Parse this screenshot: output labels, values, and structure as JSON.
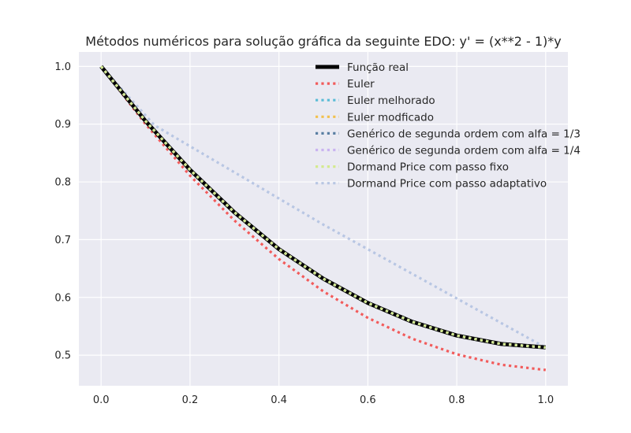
{
  "chart_data": {
    "type": "line",
    "title": "Métodos numéricos para solução gráfica da seguinte EDO: y' = (x**2 - 1)*y",
    "xlabel": "",
    "ylabel": "",
    "xlim": [
      -0.05,
      1.05
    ],
    "ylim": [
      0.447,
      1.025
    ],
    "xticks": [
      0.0,
      0.2,
      0.4,
      0.6,
      0.8,
      1.0
    ],
    "xtick_labels": [
      "0.0",
      "0.2",
      "0.4",
      "0.6",
      "0.8",
      "1.0"
    ],
    "yticks": [
      0.5,
      0.6,
      0.7,
      0.8,
      0.9,
      1.0
    ],
    "ytick_labels": [
      "0.5",
      "0.6",
      "0.7",
      "0.8",
      "0.9",
      "1.0"
    ],
    "grid": true,
    "legend_position": "top-right",
    "series": [
      {
        "name": "Função real",
        "color": "#000000",
        "style": "solid",
        "x": [
          0,
          0.1,
          0.2,
          0.3,
          0.4,
          0.5,
          0.6,
          0.7,
          0.8,
          0.9,
          1.0
        ],
        "y": [
          1.0,
          0.9053,
          0.821,
          0.7472,
          0.6836,
          0.6323,
          0.5904,
          0.5577,
          0.534,
          0.5194,
          0.5134
        ]
      },
      {
        "name": "Euler",
        "color": "#f25b5b",
        "style": "dotted",
        "x": [
          0,
          0.1,
          0.2,
          0.3,
          0.4,
          0.5,
          0.6,
          0.7,
          0.8,
          0.9,
          1.0
        ],
        "y": [
          1.0,
          0.9,
          0.8109,
          0.7331,
          0.6664,
          0.6104,
          0.5646,
          0.5285,
          0.5015,
          0.4834,
          0.4743
        ]
      },
      {
        "name": "Euler melhorado",
        "color": "#5bbcd6",
        "style": "dotted",
        "x": [
          0,
          0.1,
          0.2,
          0.3,
          0.4,
          0.5,
          0.6,
          0.7,
          0.8,
          0.9,
          1.0
        ],
        "y": [
          1.0,
          0.9053,
          0.821,
          0.7472,
          0.6836,
          0.6323,
          0.5904,
          0.5577,
          0.534,
          0.5194,
          0.5134
        ]
      },
      {
        "name": "Euler modficado",
        "color": "#f2c14e",
        "style": "dotted",
        "x": [
          0,
          0.1,
          0.2,
          0.3,
          0.4,
          0.5,
          0.6,
          0.7,
          0.8,
          0.9,
          1.0
        ],
        "y": [
          1.0,
          0.9053,
          0.821,
          0.7472,
          0.6836,
          0.6323,
          0.5904,
          0.5577,
          0.534,
          0.5194,
          0.5134
        ]
      },
      {
        "name": "Genérico de segunda ordem com alfa = 1/3",
        "color": "#5a7fa3",
        "style": "dotted",
        "x": [
          0,
          0.1,
          0.2,
          0.3,
          0.4,
          0.5,
          0.6,
          0.7,
          0.8,
          0.9,
          1.0
        ],
        "y": [
          1.0,
          0.9053,
          0.821,
          0.7472,
          0.6836,
          0.6323,
          0.5904,
          0.5577,
          0.534,
          0.5194,
          0.5134
        ]
      },
      {
        "name": "Genérico de segunda ordem com alfa = 1/4",
        "color": "#c9b3f0",
        "style": "dotted",
        "x": [
          0,
          0.1,
          0.2,
          0.3,
          0.4,
          0.5,
          0.6,
          0.7,
          0.8,
          0.9,
          1.0
        ],
        "y": [
          1.0,
          0.9053,
          0.821,
          0.7472,
          0.6836,
          0.6323,
          0.5904,
          0.5577,
          0.534,
          0.5194,
          0.5134
        ]
      },
      {
        "name": "Dormand Price com passo fixo",
        "color": "#d4ea8f",
        "style": "dotted",
        "x": [
          0,
          0.1,
          0.2,
          0.3,
          0.4,
          0.5,
          0.6,
          0.7,
          0.8,
          0.9,
          1.0
        ],
        "y": [
          1.0,
          0.9053,
          0.821,
          0.7472,
          0.6836,
          0.6323,
          0.5904,
          0.5577,
          0.534,
          0.5194,
          0.5134
        ]
      },
      {
        "name": "Dormand Price com passo adaptativo",
        "color": "#b8c6e3",
        "style": "dotted",
        "x": [
          0,
          0.12,
          0.5,
          1.0
        ],
        "y": [
          1.0,
          0.898,
          0.726,
          0.513
        ]
      }
    ]
  }
}
